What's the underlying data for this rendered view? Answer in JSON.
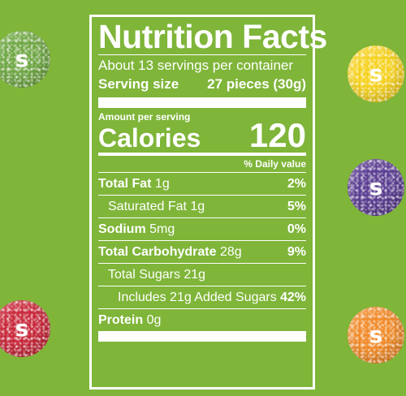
{
  "candies": [
    {
      "id": "green",
      "color": "#6fa744",
      "mark": "s"
    },
    {
      "id": "yellow",
      "color": "#f6d21e",
      "mark": "s"
    },
    {
      "id": "purple",
      "color": "#5b3d91",
      "mark": "s"
    },
    {
      "id": "red",
      "color": "#c9283a",
      "mark": "s"
    },
    {
      "id": "orange",
      "color": "#f18a28",
      "mark": "s"
    }
  ],
  "background_color": "#7fb539",
  "label": {
    "title": "Nutrition Facts",
    "servings_per_container": "About 13 servings per container",
    "serving_size_label": "Serving size",
    "serving_size_value": "27 pieces (30g)",
    "amount_per_serving": "Amount per serving",
    "calories_label": "Calories",
    "calories_value": "120",
    "daily_value_header": "% Daily value",
    "rows": [
      {
        "name": "Total Fat",
        "amount": " 1g",
        "pct": "2%"
      },
      {
        "name": "Saturated Fat",
        "amount": " 1g",
        "pct": "5%"
      },
      {
        "name": "Sodium",
        "amount": " 5mg",
        "pct": "0%"
      },
      {
        "name": "Total Carbohydrate",
        "amount": " 28g",
        "pct": "9%"
      },
      {
        "name": "Total Sugars",
        "amount": " 21g",
        "pct": ""
      },
      {
        "name": "Includes 21g Added Sugars",
        "amount": "",
        "pct": "42%"
      },
      {
        "name": "Protein",
        "amount": " 0g",
        "pct": ""
      }
    ]
  }
}
